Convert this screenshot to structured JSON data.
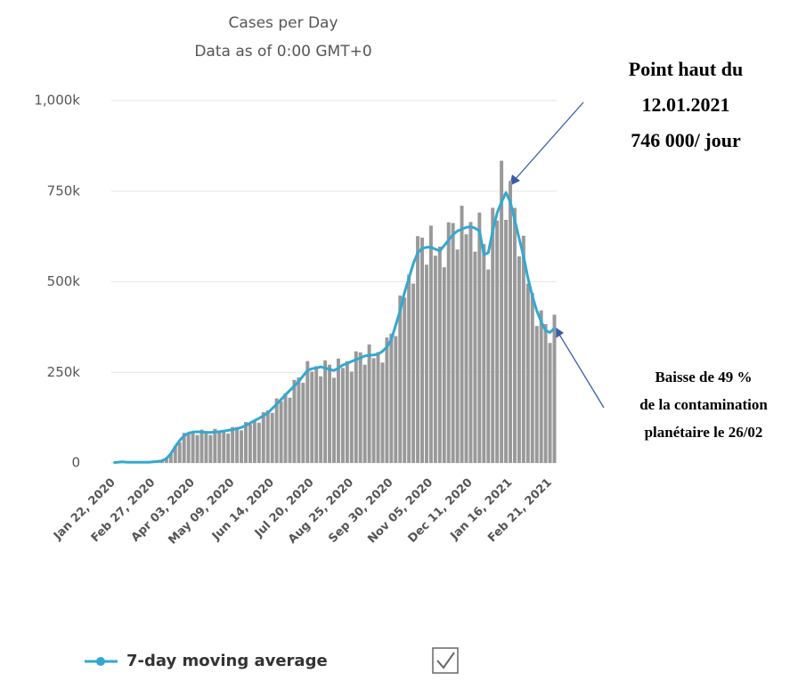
{
  "chart_data": {
    "type": "bar",
    "title": "Cases per Day",
    "subtitle": "Data as of 0:00 GMT+0",
    "categories": [
      "Jan 22, 2020",
      null,
      null,
      null,
      null,
      null,
      null,
      null,
      null,
      "Feb 27, 2020",
      null,
      null,
      null,
      null,
      null,
      null,
      null,
      null,
      "Apr 03, 2020",
      null,
      null,
      null,
      null,
      null,
      null,
      null,
      null,
      "May 09, 2020",
      null,
      null,
      null,
      null,
      null,
      null,
      null,
      null,
      "Jun 14, 2020",
      null,
      null,
      null,
      null,
      null,
      null,
      null,
      null,
      "Jul 20, 2020",
      null,
      null,
      null,
      null,
      null,
      null,
      null,
      null,
      "Aug 25, 2020",
      null,
      null,
      null,
      null,
      null,
      null,
      null,
      null,
      "Sep 30, 2020",
      null,
      null,
      null,
      null,
      null,
      null,
      null,
      null,
      "Nov 05, 2020",
      null,
      null,
      null,
      null,
      null,
      null,
      null,
      null,
      "Dec 11, 2020",
      null,
      null,
      null,
      null,
      null,
      null,
      null,
      null,
      "Jan 16, 2021",
      null,
      null,
      null,
      null,
      null,
      null,
      null,
      null,
      "Feb 21, 2021",
      null
    ],
    "values": [
      1,
      2,
      3,
      2,
      2,
      2,
      2,
      2,
      2,
      3,
      4,
      6,
      11,
      27,
      47,
      57,
      83,
      80,
      87,
      77,
      92,
      88,
      77,
      94,
      83,
      90,
      81,
      99,
      99,
      90,
      113,
      107,
      119,
      111,
      140,
      145,
      138,
      178,
      170,
      192,
      180,
      229,
      236,
      221,
      281,
      252,
      267,
      239,
      283,
      271,
      235,
      288,
      262,
      281,
      252,
      308,
      305,
      271,
      327,
      289,
      306,
      277,
      346,
      357,
      350,
      462,
      456,
      520,
      495,
      626,
      622,
      547,
      655,
      572,
      597,
      540,
      664,
      662,
      589,
      710,
      631,
      665,
      583,
      691,
      604,
      534,
      704,
      669,
      834,
      671,
      778,
      704,
      570,
      627,
      495,
      469,
      378,
      421,
      383,
      331,
      409
    ],
    "color": "#999999",
    "moving_average": {
      "name": "7-day moving average",
      "color": "#33a8d1",
      "values": [
        1,
        2,
        3,
        2,
        2,
        2,
        2,
        2,
        2,
        3,
        4,
        6,
        12,
        25,
        45,
        62,
        75,
        82,
        85,
        86,
        85,
        84,
        84,
        85,
        86,
        88,
        90,
        92,
        94,
        98,
        103,
        110,
        117,
        123,
        130,
        138,
        150,
        162,
        175,
        188,
        200,
        212,
        225,
        240,
        255,
        260,
        262,
        265,
        262,
        258,
        255,
        262,
        270,
        275,
        280,
        285,
        290,
        295,
        297,
        298,
        300,
        308,
        320,
        340,
        380,
        420,
        470,
        510,
        550,
        580,
        592,
        595,
        595,
        590,
        585,
        600,
        615,
        630,
        640,
        645,
        650,
        652,
        648,
        640,
        575,
        580,
        640,
        690,
        720,
        746,
        720,
        670,
        620,
        570,
        510,
        460,
        420,
        390,
        365,
        360,
        372
      ]
    },
    "ylim": [
      0,
      1000
    ],
    "yticks": [
      0,
      {
        "value": 250,
        "label": "250k"
      },
      {
        "value": 500,
        "label": "500k"
      },
      {
        "value": 750,
        "label": "750k"
      },
      {
        "value": 1000,
        "label": "1,000k"
      }
    ],
    "grid": true,
    "annotations": [
      {
        "lines": [
          "Point haut du",
          "12.01.2021",
          "746 000/ jour"
        ]
      },
      {
        "lines": [
          "Baisse de 49 %",
          "de la contamination",
          "planétaire le 26/02"
        ]
      }
    ]
  }
}
